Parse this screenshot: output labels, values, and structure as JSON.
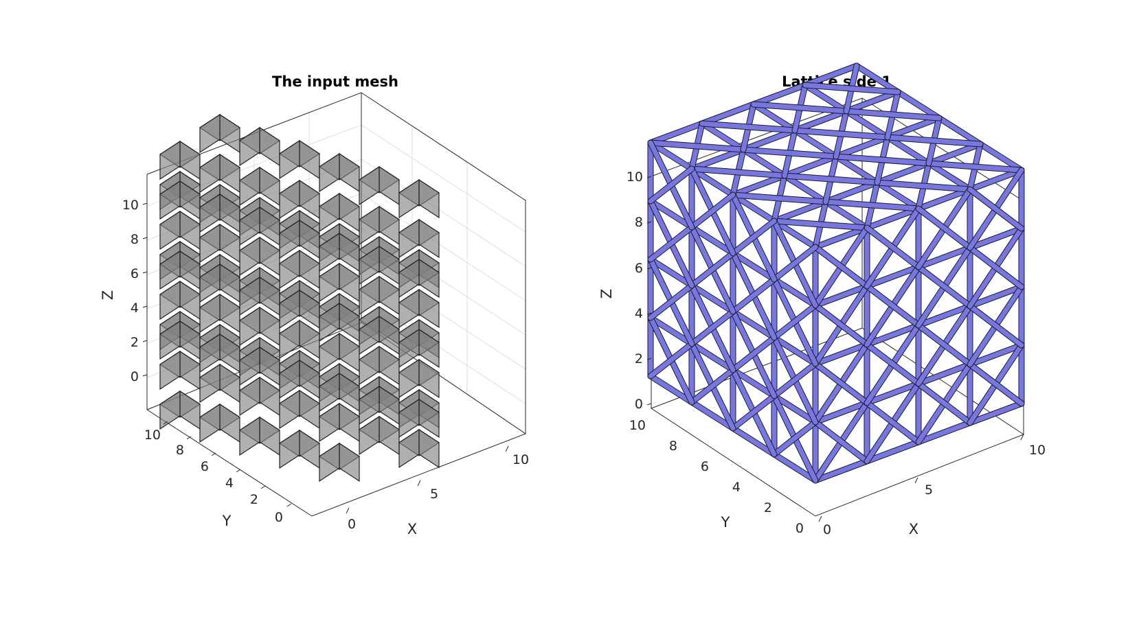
{
  "figure": {
    "panels": [
      {
        "title": "The input mesh",
        "x_label": "X",
        "y_label": "Y",
        "z_label": "Z",
        "x_ticks": [
          "0",
          "5",
          "10"
        ],
        "y_ticks": [
          "0",
          "2",
          "4",
          "6",
          "8",
          "10"
        ],
        "z_ticks": [
          "0",
          "2",
          "4",
          "6",
          "8",
          "10"
        ],
        "face_color": "#7f7f7f",
        "edge_color": "#222222"
      },
      {
        "title": "Lattice side 1",
        "x_label": "X",
        "y_label": "Y",
        "z_label": "Z",
        "x_ticks": [
          "0",
          "5",
          "10"
        ],
        "y_ticks": [
          "0",
          "2",
          "4",
          "6",
          "8",
          "10"
        ],
        "z_ticks": [
          "0",
          "2",
          "4",
          "6",
          "8",
          "10"
        ],
        "strut_color": "#7777dd",
        "edge_color": "#1a1a33"
      }
    ]
  }
}
